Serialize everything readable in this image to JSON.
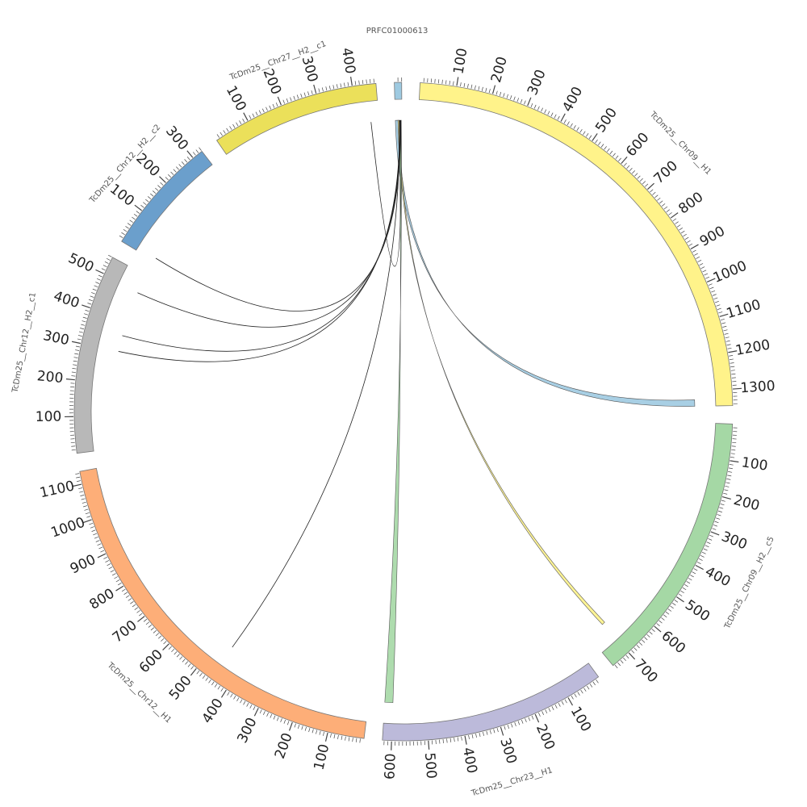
{
  "diagram": {
    "type": "circos",
    "segments": [
      {
        "id": "prfc",
        "label": "PRFC01000613",
        "length": 20,
        "color": "#9ecae1"
      },
      {
        "id": "chr09_h1",
        "label": "TcDm25__Chr09__H1",
        "length": 1345,
        "color": "#fff38a"
      },
      {
        "id": "chr09_h2_c5",
        "label": "TcDm25__Chr09__H2__c5",
        "length": 755,
        "color": "#a5d8a5"
      },
      {
        "id": "chr23_h1",
        "label": "TcDm25__Chr23__H1",
        "length": 625,
        "color": "#bcbada"
      },
      {
        "id": "chr12_h1",
        "label": "TcDm25__Chr12__H1",
        "length": 1135,
        "color": "#fdae78"
      },
      {
        "id": "chr12_h2_c1",
        "label": "TcDm25__Chr12__H2__c1",
        "length": 550,
        "color": "#b8b8b8"
      },
      {
        "id": "chr12_h2_c2",
        "label": "TcDm25__Chr12__H2__c2",
        "length": 330,
        "color": "#6b9fcc"
      },
      {
        "id": "chr27_h2_c1",
        "label": "TcDm25__Chr27__H2__c1",
        "length": 465,
        "color": "#ebe05a"
      }
    ],
    "ticks": {
      "chr09_h1": [
        "100",
        "200",
        "300",
        "400",
        "500",
        "600",
        "700",
        "800",
        "900",
        "1000",
        "1100",
        "1200",
        "1300"
      ],
      "chr09_h2_c5": [
        "100",
        "200",
        "300",
        "400",
        "500",
        "600",
        "700"
      ],
      "chr23_h1": [
        "100",
        "200",
        "300",
        "400",
        "500",
        "600"
      ],
      "chr12_h1": [
        "100",
        "200",
        "300",
        "400",
        "500",
        "600",
        "700",
        "800",
        "900",
        "1000",
        "1100"
      ],
      "chr12_h2_c1": [
        "100",
        "200",
        "300",
        "400",
        "500"
      ],
      "chr12_h2_c2": [
        "100",
        "200",
        "300"
      ],
      "chr27_h2_c1": [
        "100",
        "200",
        "300",
        "400"
      ]
    },
    "ribbons": [
      {
        "from": "prfc",
        "from_pos": [
          0,
          8
        ],
        "to": "chr09_h1",
        "to_pos": [
          1325,
          1345
        ],
        "color": "#9ecae1"
      },
      {
        "from": "prfc",
        "from_pos": [
          8,
          12
        ],
        "to": "chr09_h2_c5",
        "to_pos": [
          690,
          700
        ],
        "color": "#fff38a"
      },
      {
        "from": "prfc",
        "from_pos": [
          12,
          18
        ],
        "to": "chr23_h1",
        "to_pos": [
          600,
          625
        ],
        "color": "#a5d8a5"
      }
    ],
    "links": [
      {
        "from": "prfc",
        "from_pos": 17,
        "to": "chr27_h2_c1",
        "to_pos": 440
      },
      {
        "from": "prfc",
        "from_pos": 16,
        "to": "chr12_h2_c2",
        "to_pos": 10
      },
      {
        "from": "prfc",
        "from_pos": 15,
        "to": "chr12_h2_c1",
        "to_pos": 490
      },
      {
        "from": "prfc",
        "from_pos": 14,
        "to": "chr12_h2_c1",
        "to_pos": 350
      },
      {
        "from": "prfc",
        "from_pos": 13,
        "to": "chr12_h2_c1",
        "to_pos": 300
      },
      {
        "from": "prfc",
        "from_pos": 12,
        "to": "chr12_h1",
        "to_pos": 455
      }
    ]
  }
}
